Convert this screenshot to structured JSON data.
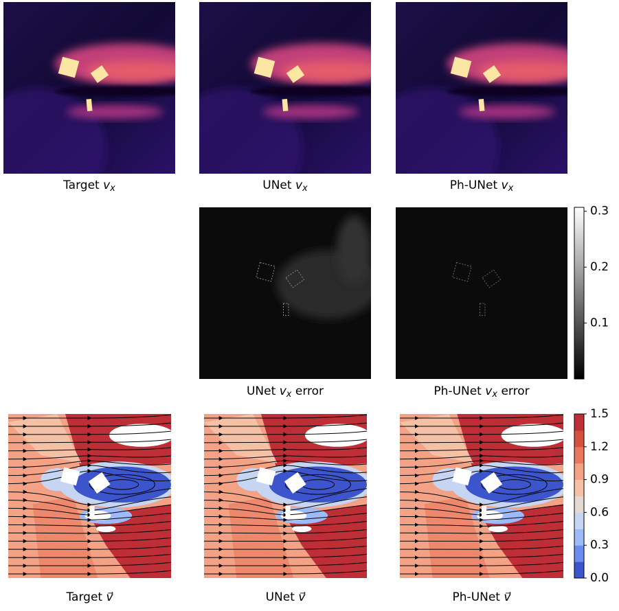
{
  "panels": [
    {
      "caption": {
        "label": "Target",
        "symbol": "v",
        "subscript": "x"
      }
    },
    {
      "caption": {
        "label": "UNet",
        "symbol": "v",
        "subscript": "x"
      }
    },
    {
      "caption": {
        "label": "Ph-UNet",
        "symbol": "v",
        "subscript": "x"
      }
    },
    {
      "caption": {
        "label": "UNet",
        "symbol": "v",
        "subscript": "x",
        "suffix": "error"
      }
    },
    {
      "caption": {
        "label": "Ph-UNet",
        "symbol": "v",
        "subscript": "x",
        "suffix": "error"
      }
    },
    {
      "caption": {
        "label": "Target",
        "symbol": "v⃗"
      }
    },
    {
      "caption": {
        "label": "UNet",
        "symbol": "v⃗"
      }
    },
    {
      "caption": {
        "label": "Ph-UNet",
        "symbol": "v⃗"
      }
    }
  ],
  "colorbars": {
    "error": {
      "lim": [
        0,
        0.307
      ],
      "ticks": [
        0.1,
        0.2,
        0.3
      ]
    },
    "velocity": {
      "lim": [
        0,
        1.5
      ],
      "ticks": [
        {
          "value": 0,
          "label": "0.0"
        },
        0.3,
        0.6,
        0.9,
        1.2,
        1.5
      ],
      "colors": [
        "#3d55cc",
        "#6a8ef0",
        "#9dbbfb",
        "#c6d6f2",
        "#e4d9d2",
        "#f4c1a6",
        "#f4a286",
        "#e8775c",
        "#d4503f",
        "#bd2e36"
      ]
    }
  }
}
